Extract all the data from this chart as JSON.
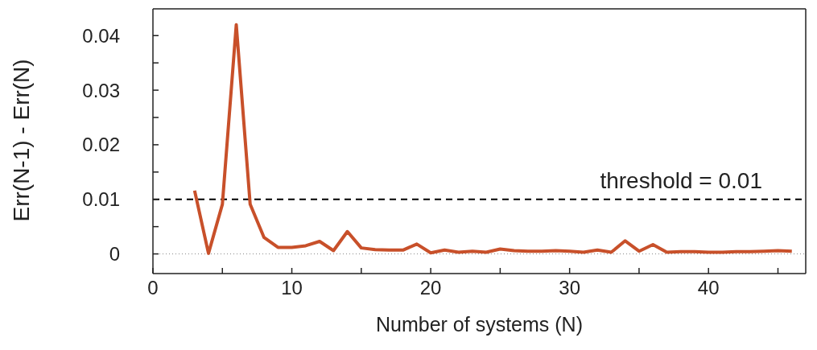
{
  "chart_data": {
    "type": "line",
    "xlabel": "Number of systems (N)",
    "ylabel": "Err(N-1) - Err(N)",
    "x": [
      3,
      4,
      5,
      6,
      7,
      8,
      9,
      10,
      11,
      12,
      13,
      14,
      15,
      16,
      17,
      18,
      19,
      20,
      21,
      22,
      23,
      24,
      25,
      26,
      27,
      28,
      29,
      30,
      31,
      32,
      33,
      34,
      35,
      36,
      37,
      38,
      39,
      40,
      41,
      42,
      43,
      44,
      45,
      46
    ],
    "series": [
      {
        "color": "#c8502a",
        "values": [
          0.0116,
          0.0001,
          0.0091,
          0.042,
          0.0091,
          0.003,
          0.0012,
          0.0012,
          0.0015,
          0.0023,
          0.0006,
          0.0041,
          0.0011,
          0.0008,
          0.0007,
          0.0007,
          0.0018,
          0.0002,
          0.0007,
          0.0003,
          0.0005,
          0.0003,
          0.0009,
          0.0006,
          0.0005,
          0.0005,
          0.0006,
          0.0005,
          0.0003,
          0.0007,
          0.0003,
          0.0024,
          0.0005,
          0.0017,
          0.0003,
          0.0004,
          0.0004,
          0.0003,
          0.0003,
          0.0004,
          0.0004,
          0.0005,
          0.0006,
          0.0005
        ]
      }
    ],
    "xlim": [
      0,
      47
    ],
    "xticks": [
      0,
      {
        "value": 5,
        "label": null
      },
      10,
      {
        "value": 15,
        "label": null
      },
      20,
      {
        "value": 25,
        "label": null
      },
      30,
      {
        "value": 35,
        "label": null
      },
      40,
      {
        "value": 45,
        "label": null
      }
    ],
    "ylim": [
      -0.0036,
      0.0449
    ],
    "yticks": [
      0,
      {
        "value": 0.005,
        "label": null
      },
      0.01,
      {
        "value": 0.015,
        "label": null
      },
      0.02,
      {
        "value": 0.025,
        "label": null
      },
      0.03,
      {
        "value": 0.035,
        "label": null
      },
      0.04
    ],
    "ref_lines": [
      {
        "axis": "y",
        "value": 0.01,
        "label": "threshold = 0.01",
        "color": "#000000",
        "line_style": "dashed"
      },
      {
        "axis": "y",
        "value": 0,
        "color": "#888888",
        "line_style": "dotted"
      }
    ],
    "grid": false,
    "legend": false,
    "marker": "none",
    "line_style": "solid"
  }
}
